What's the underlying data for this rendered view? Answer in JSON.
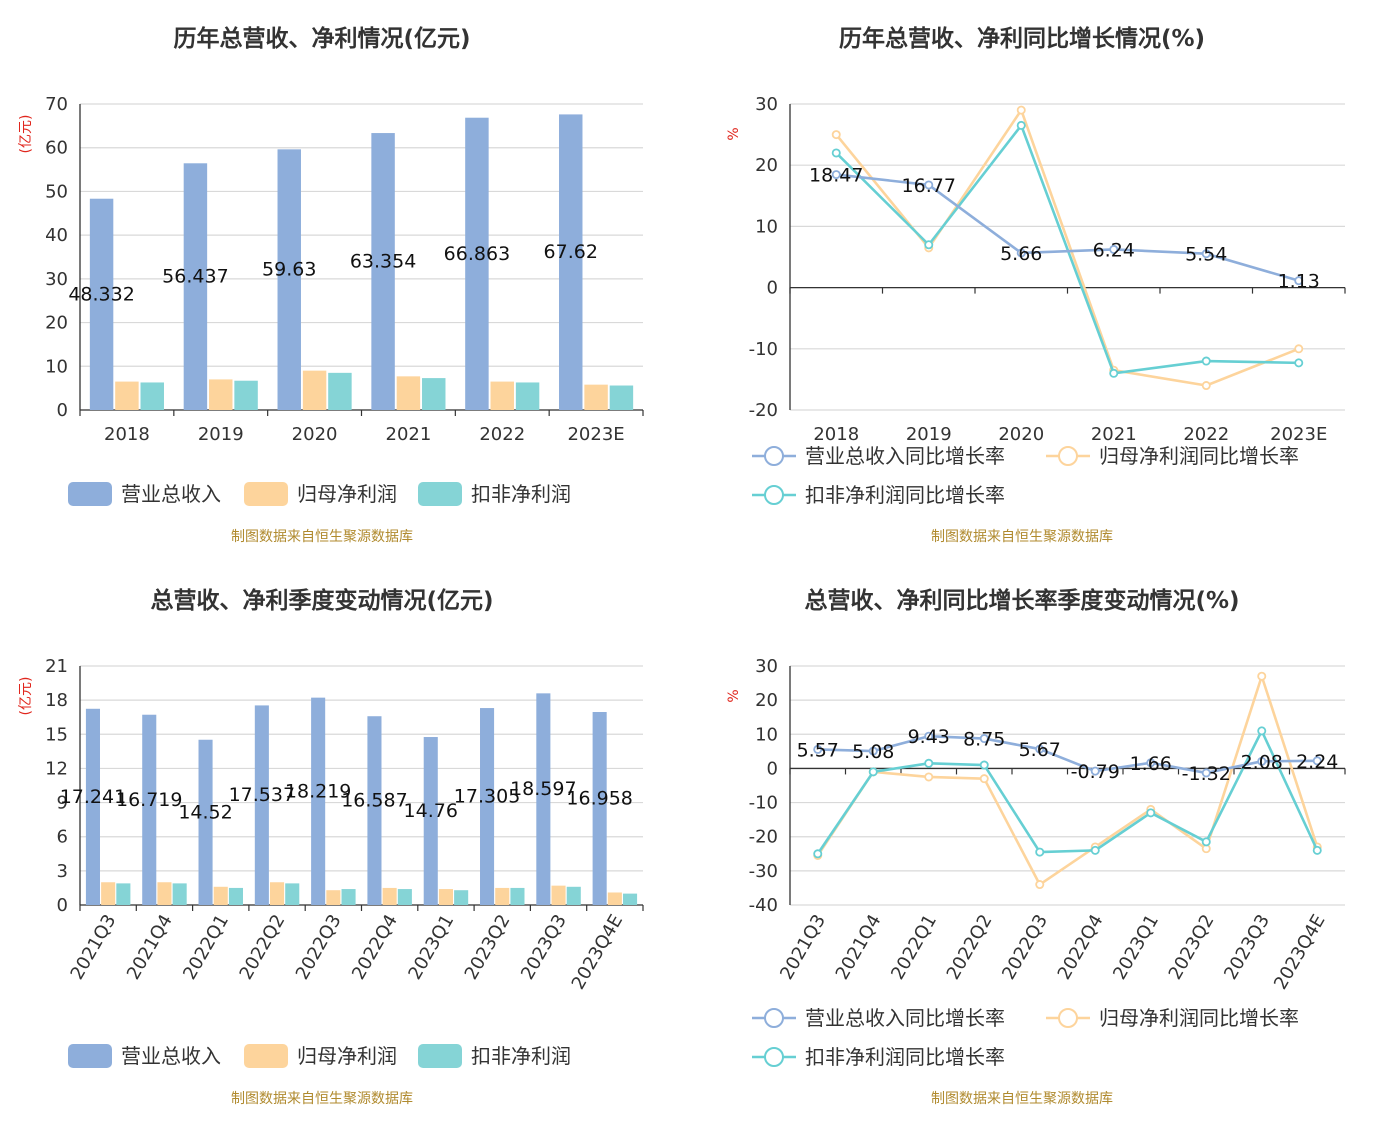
{
  "colors": {
    "revenue": "#8eaedb",
    "net_profit": "#fdd49c",
    "deducted": "#85d4d6",
    "revenue_line": "#8eaedb",
    "net_profit_line": "#fdd49c",
    "deducted_line": "#66cfd3",
    "grid": "#d9d9d9",
    "axis": "#333333"
  },
  "chart_data": [
    {
      "id": "annual-bars",
      "type": "bar",
      "title": "历年总营收、净利情况(亿元)",
      "ylabel": "(亿元)",
      "ylim": [
        0,
        70
      ],
      "yticks": [
        0,
        10,
        20,
        30,
        40,
        50,
        60,
        70
      ],
      "categories": [
        "2018",
        "2019",
        "2020",
        "2021",
        "2022",
        "2023E"
      ],
      "series": [
        {
          "name": "营业总收入",
          "key": "revenue",
          "values": [
            48.332,
            56.437,
            59.63,
            63.354,
            66.863,
            67.62
          ],
          "labels": [
            "48.332",
            "56.437",
            "59.63",
            "63.354",
            "66.863",
            "67.62"
          ]
        },
        {
          "name": "归母净利润",
          "key": "net_profit",
          "values": [
            6.5,
            7.0,
            9.0,
            7.7,
            6.5,
            5.8
          ]
        },
        {
          "name": "扣非净利润",
          "key": "deducted",
          "values": [
            6.3,
            6.7,
            8.5,
            7.3,
            6.3,
            5.6
          ]
        }
      ],
      "grid": true,
      "legend": "bottom",
      "source": "制图数据来自恒生聚源数据库"
    },
    {
      "id": "annual-lines",
      "type": "line",
      "title": "历年总营收、净利同比增长情况(%)",
      "ylabel": "%",
      "ylim": [
        -20,
        30
      ],
      "yticks": [
        -20,
        -10,
        0,
        10,
        20,
        30
      ],
      "categories": [
        "2018",
        "2019",
        "2020",
        "2021",
        "2022",
        "2023E"
      ],
      "series": [
        {
          "name": "营业总收入同比增长率",
          "key": "revenue_line",
          "values": [
            18.47,
            16.77,
            5.66,
            6.24,
            5.54,
            1.13
          ],
          "labels": [
            "18.47",
            "16.77",
            "5.66",
            "6.24",
            "5.54",
            "1.13"
          ]
        },
        {
          "name": "归母净利润同比增长率",
          "key": "net_profit_line",
          "values": [
            25,
            6.5,
            29,
            -13.5,
            -16,
            -10
          ]
        },
        {
          "name": "扣非净利润同比增长率",
          "key": "deducted_line",
          "values": [
            22,
            7,
            26.5,
            -14,
            -12,
            -12.3
          ]
        }
      ],
      "grid": true,
      "legend": "bottom",
      "source": "制图数据来自恒生聚源数据库"
    },
    {
      "id": "quarter-bars",
      "type": "bar",
      "title": "总营收、净利季度变动情况(亿元)",
      "ylabel": "(亿元)",
      "ylim": [
        0,
        21
      ],
      "yticks": [
        0,
        3,
        6,
        9,
        12,
        15,
        18,
        21
      ],
      "categories": [
        "2021Q3",
        "2021Q4",
        "2022Q1",
        "2022Q2",
        "2022Q3",
        "2022Q4",
        "2023Q1",
        "2023Q2",
        "2023Q3",
        "2023Q4E"
      ],
      "series": [
        {
          "name": "营业总收入",
          "key": "revenue",
          "values": [
            17.241,
            16.719,
            14.52,
            17.537,
            18.219,
            16.587,
            14.76,
            17.305,
            18.597,
            16.958
          ],
          "labels": [
            "17.241",
            "16.719",
            "14.52",
            "17.537",
            "18.219",
            "16.587",
            "14.76",
            "17.305",
            "18.597",
            "16.958"
          ]
        },
        {
          "name": "归母净利润",
          "key": "net_profit",
          "values": [
            2.0,
            2.0,
            1.6,
            2.0,
            1.3,
            1.5,
            1.4,
            1.5,
            1.7,
            1.1
          ]
        },
        {
          "name": "扣非净利润",
          "key": "deducted",
          "values": [
            1.9,
            1.9,
            1.5,
            1.9,
            1.4,
            1.4,
            1.3,
            1.5,
            1.6,
            1.0
          ]
        }
      ],
      "grid": true,
      "legend": "bottom",
      "source": "制图数据来自恒生聚源数据库"
    },
    {
      "id": "quarter-lines",
      "type": "line",
      "title": "总营收、净利同比增长率季度变动情况(%)",
      "ylabel": "%",
      "ylim": [
        -40,
        30
      ],
      "yticks": [
        -40,
        -30,
        -20,
        -10,
        0,
        10,
        20,
        30
      ],
      "categories": [
        "2021Q3",
        "2021Q4",
        "2022Q1",
        "2022Q2",
        "2022Q3",
        "2022Q4",
        "2023Q1",
        "2023Q2",
        "2023Q3",
        "2023Q4E"
      ],
      "series": [
        {
          "name": "营业总收入同比增长率",
          "key": "revenue_line",
          "values": [
            5.57,
            5.08,
            9.43,
            8.75,
            5.67,
            -0.79,
            1.66,
            -1.32,
            2.08,
            2.24
          ],
          "labels": [
            "5.57",
            "5.08",
            "9.43",
            "8.75",
            "5.67",
            "-0.79",
            "1.66",
            "-1.32",
            "2.08",
            "2.24"
          ]
        },
        {
          "name": "归母净利润同比增长率",
          "key": "net_profit_line",
          "values": [
            -25.5,
            -1,
            -2.5,
            -3,
            -34,
            -23,
            -12,
            -23.5,
            27,
            -23
          ]
        },
        {
          "name": "扣非净利润同比增长率",
          "key": "deducted_line",
          "values": [
            -25,
            -1,
            1.5,
            1,
            -24.5,
            -24,
            -13,
            -21.5,
            11,
            -24
          ]
        }
      ],
      "grid": true,
      "legend": "bottom",
      "source": "制图数据来自恒生聚源数据库"
    }
  ]
}
